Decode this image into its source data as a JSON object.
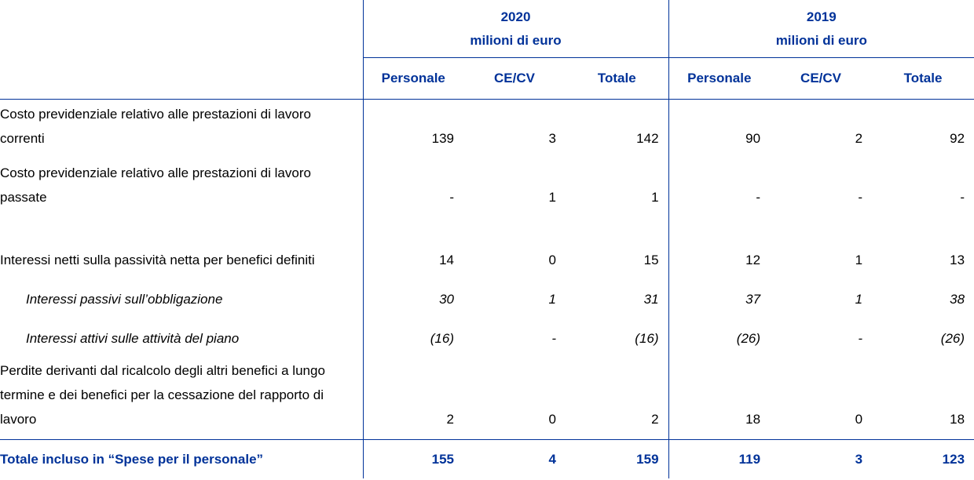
{
  "header": {
    "groups": [
      {
        "year": "2020",
        "unit": "milioni di euro"
      },
      {
        "year": "2019",
        "unit": "milioni di euro"
      }
    ],
    "columns": [
      "Personale",
      "CE/CV",
      "Totale",
      "Personale",
      "CE/CV",
      "Totale"
    ]
  },
  "rows": [
    {
      "label": "Costo previdenziale relativo alle prestazioni di lavoro correnti",
      "values": [
        "139",
        "3",
        "142",
        "90",
        "2",
        "92"
      ]
    },
    {
      "label": "Costo previdenziale relativo alle prestazioni di lavoro passate",
      "values": [
        "-",
        "1",
        "1",
        "-",
        "-",
        "-"
      ]
    },
    {
      "label": "Interessi netti sulla passività netta per benefici definiti",
      "values": [
        "14",
        "0",
        "15",
        "12",
        "1",
        "13"
      ]
    },
    {
      "label": "Interessi passivi sull’obbligazione",
      "values": [
        "30",
        "1",
        "31",
        "37",
        "1",
        "38"
      ]
    },
    {
      "label": "Interessi attivi sulle attività del piano",
      "values": [
        "(16)",
        "-",
        "(16)",
        "(26)",
        "-",
        "(26)"
      ]
    },
    {
      "label": "Perdite derivanti dal ricalcolo degli altri benefici a lungo termine e dei benefici per la cessazione del rapporto di lavoro",
      "values": [
        "2",
        "0",
        "2",
        "18",
        "0",
        "18"
      ]
    }
  ],
  "total": {
    "label": "Totale incluso in “Spese per il personale”",
    "values": [
      "155",
      "4",
      "159",
      "119",
      "3",
      "123"
    ]
  }
}
